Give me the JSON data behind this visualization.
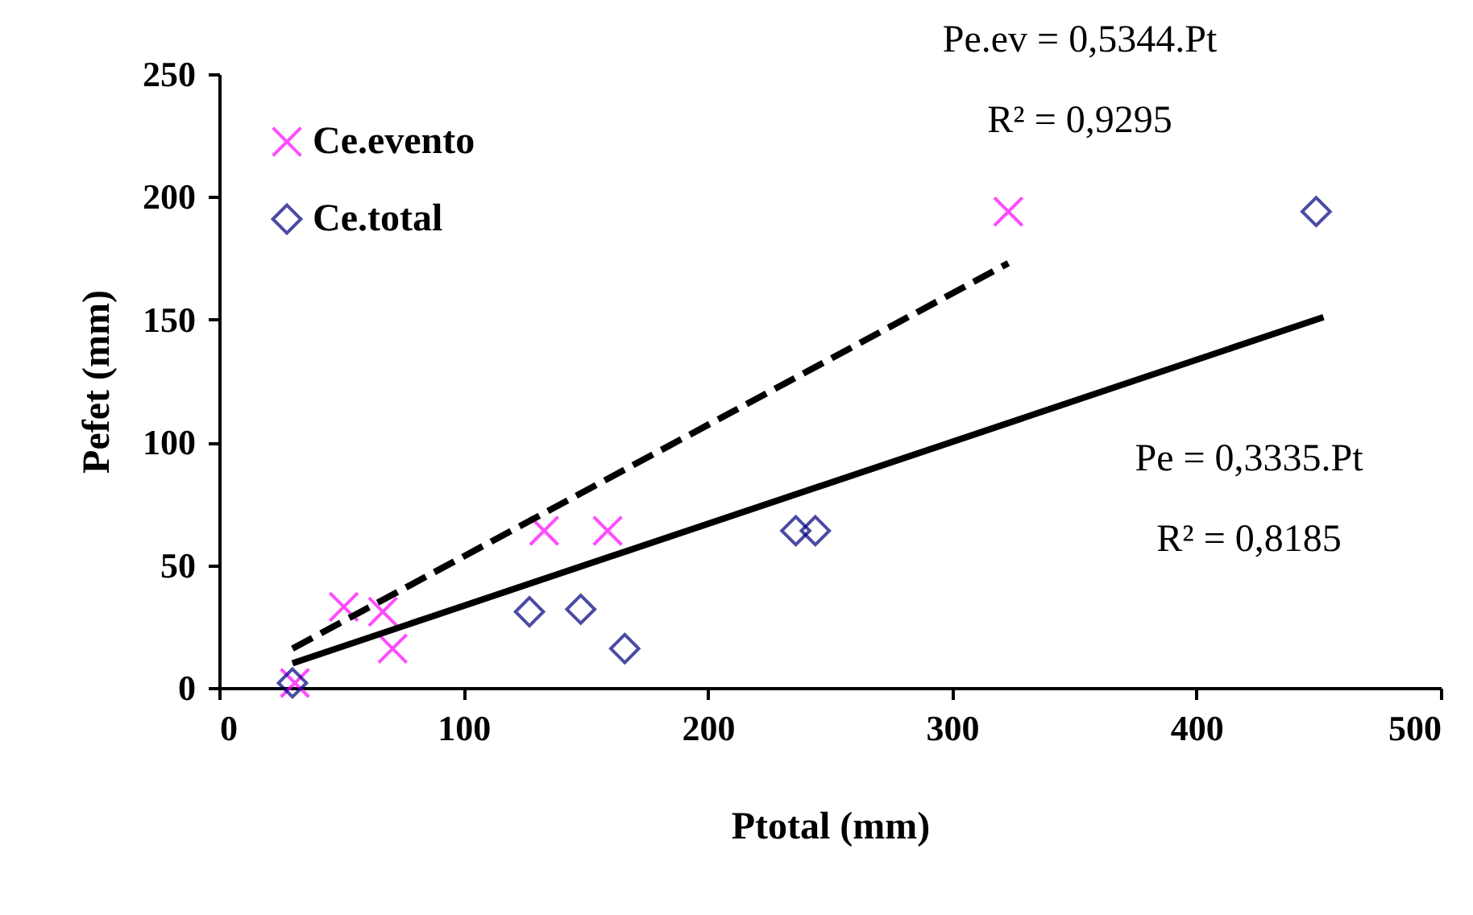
{
  "chart_data": {
    "type": "scatter",
    "xlabel": "Ptotal (mm)",
    "ylabel": "Pefet (mm)",
    "xlim": [
      0,
      500
    ],
    "xticks": [
      0,
      100,
      200,
      300,
      400,
      500
    ],
    "ylim": [
      0,
      250
    ],
    "yticks": [
      0,
      50,
      100,
      150,
      200,
      250
    ],
    "grid": false,
    "legend": "top left",
    "series": [
      {
        "name": "Ce.evento",
        "marker": "cross",
        "color": "#ff00ff",
        "x": [
          31,
          51,
          67,
          71,
          133,
          159,
          323
        ],
        "values": [
          2,
          33,
          31,
          16,
          64,
          64,
          194
        ]
      },
      {
        "name": "Ce.total",
        "marker": "diamond",
        "color": "#000080",
        "x": [
          30,
          127,
          148,
          166,
          236,
          244,
          449
        ],
        "values": [
          2,
          31,
          32,
          16,
          64,
          64,
          194
        ]
      },
      {
        "type": "line",
        "line_style": "dashed",
        "color": "#000000",
        "x": [
          30,
          323
        ],
        "values": [
          16,
          173
        ]
      },
      {
        "type": "line",
        "line_style": "solid",
        "color": "#000000",
        "x": [
          30,
          452
        ],
        "values": [
          10,
          151
        ]
      }
    ],
    "annotations": [
      "Pe.ev = 0,5344.Pt",
      "R² = 0,9295",
      "Pe = 0,3335.Pt",
      "R² = 0,8185"
    ]
  }
}
